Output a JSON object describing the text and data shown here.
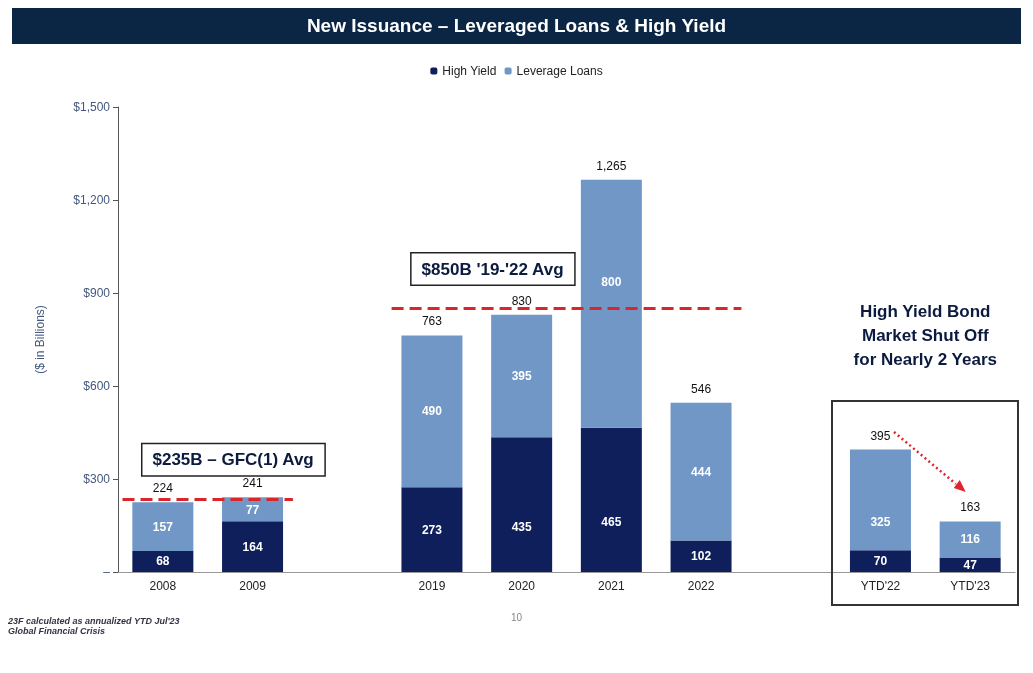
{
  "chart_data": {
    "type": "bar",
    "title": "New Issuance – Leveraged Loans & High Yield",
    "ylabel": "($ in Billions)",
    "categories": [
      "2008",
      "2009",
      null,
      "2019",
      "2020",
      "2021",
      "2022",
      null,
      "YTD'22",
      "YTD'23"
    ],
    "stacked": true,
    "series": [
      {
        "name": "High Yield",
        "color": "#0f1f5c",
        "values": [
          68,
          164,
          null,
          273,
          435,
          465,
          102,
          null,
          70,
          47
        ]
      },
      {
        "name": "Leverage Loans",
        "color": "#7097c6",
        "values": [
          157,
          77,
          null,
          490,
          395,
          800,
          444,
          null,
          325,
          116
        ]
      }
    ],
    "totals": [
      "224",
      "241",
      null,
      "763",
      "830",
      "1,265",
      "546",
      null,
      "395",
      "163"
    ],
    "data_labels": true,
    "ylim": [
      0,
      1500
    ],
    "yticks": [
      {
        "value": 0,
        "label": "–"
      },
      {
        "value": 300,
        "label": "$300"
      },
      {
        "value": 600,
        "label": "$600"
      },
      {
        "value": 900,
        "label": "$900"
      },
      {
        "value": 1200,
        "label": "$1,200"
      },
      {
        "value": 1500,
        "label": "$1,500"
      }
    ],
    "grid": false,
    "legend": "top",
    "ref_lines": [
      {
        "axis": "y",
        "value": 235,
        "label": "$235B – GFC(1) Avg",
        "color": "#d9262b",
        "line_style": "dashed"
      },
      {
        "axis": "y",
        "value": 850,
        "label": "$850B '19-'22 Avg",
        "color": "#d9262b",
        "line_style": "dashed"
      }
    ],
    "annotations": [
      "High Yield Bond Market Shut Off for Nearly 2 Years",
      "23F calculated as annualized YTD Jul'23",
      "Global Financial Crisis",
      "10"
    ]
  }
}
